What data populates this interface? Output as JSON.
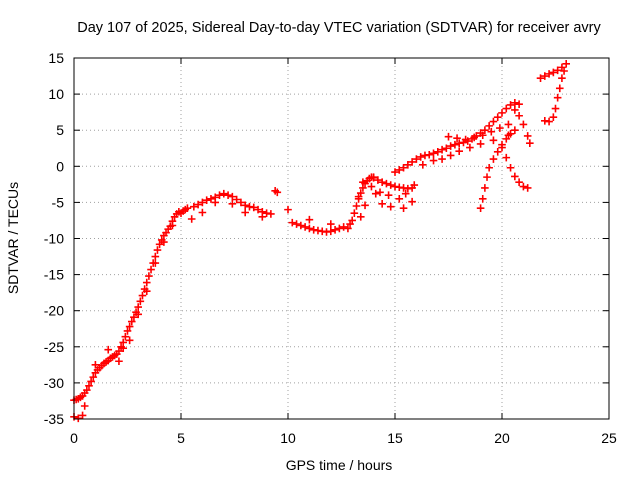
{
  "chart_data": {
    "type": "scatter",
    "title": "Day 107 of 2025, Sidereal Day-to-day VTEC variation (SDTVAR) for receiver avry",
    "xlabel": "GPS time / hours",
    "ylabel": "SDTVAR / TECUs",
    "xlim": [
      0,
      25
    ],
    "ylim": [
      -35,
      15
    ],
    "xticks": [
      0,
      5,
      10,
      15,
      20,
      25
    ],
    "yticks": [
      -35,
      -30,
      -25,
      -20,
      -15,
      -10,
      -5,
      0,
      5,
      10,
      15
    ],
    "grid": true,
    "marker": "+",
    "color": "#ff0000",
    "series": [
      {
        "name": "SDTVAR",
        "points": [
          [
            0.0,
            -32.4
          ],
          [
            0.1,
            -32.3
          ],
          [
            0.2,
            -32.2
          ],
          [
            0.3,
            -32.0
          ],
          [
            0.4,
            -31.8
          ],
          [
            0.5,
            -31.4
          ],
          [
            0.6,
            -31.0
          ],
          [
            0.7,
            -30.4
          ],
          [
            0.8,
            -29.8
          ],
          [
            0.9,
            -29.2
          ],
          [
            1.0,
            -28.6
          ],
          [
            1.1,
            -28.2
          ],
          [
            1.2,
            -27.9
          ],
          [
            1.3,
            -27.6
          ],
          [
            1.4,
            -27.3
          ],
          [
            1.5,
            -27.1
          ],
          [
            1.6,
            -26.9
          ],
          [
            1.7,
            -26.6
          ],
          [
            1.8,
            -26.4
          ],
          [
            1.9,
            -26.2
          ],
          [
            2.0,
            -26.0
          ],
          [
            2.1,
            -25.6
          ],
          [
            2.2,
            -25.0
          ],
          [
            2.3,
            -24.4
          ],
          [
            2.4,
            -23.6
          ],
          [
            2.5,
            -22.8
          ],
          [
            2.6,
            -22.2
          ],
          [
            2.7,
            -21.5
          ],
          [
            2.8,
            -20.9
          ],
          [
            2.9,
            -20.2
          ],
          [
            3.0,
            -19.5
          ],
          [
            3.1,
            -18.7
          ],
          [
            3.2,
            -17.9
          ],
          [
            3.3,
            -17.0
          ],
          [
            3.4,
            -16.1
          ],
          [
            3.5,
            -15.2
          ],
          [
            3.6,
            -14.3
          ],
          [
            3.7,
            -13.4
          ],
          [
            3.8,
            -12.5
          ],
          [
            3.9,
            -11.6
          ],
          [
            4.0,
            -10.8
          ],
          [
            4.1,
            -10.2
          ],
          [
            4.2,
            -9.6
          ],
          [
            4.3,
            -9.2
          ],
          [
            4.4,
            -8.7
          ],
          [
            4.5,
            -8.3
          ],
          [
            4.6,
            -7.6
          ],
          [
            4.7,
            -7.0
          ],
          [
            4.8,
            -6.6
          ],
          [
            4.9,
            -6.3
          ],
          [
            5.0,
            -6.5
          ],
          [
            5.1,
            -6.2
          ],
          [
            5.2,
            -6.0
          ],
          [
            5.3,
            -5.8
          ],
          [
            5.6,
            -5.6
          ],
          [
            5.8,
            -5.3
          ],
          [
            6.0,
            -5.0
          ],
          [
            6.2,
            -4.7
          ],
          [
            6.4,
            -4.5
          ],
          [
            6.6,
            -4.3
          ],
          [
            6.8,
            -4.0
          ],
          [
            7.0,
            -3.8
          ],
          [
            7.2,
            -4.0
          ],
          [
            7.4,
            -4.2
          ],
          [
            7.6,
            -4.6
          ],
          [
            7.8,
            -5.0
          ],
          [
            8.0,
            -5.4
          ],
          [
            8.2,
            -5.6
          ],
          [
            8.4,
            -5.7
          ],
          [
            8.6,
            -6.0
          ],
          [
            8.8,
            -6.3
          ],
          [
            9.0,
            -6.5
          ],
          [
            9.2,
            -6.6
          ],
          [
            9.4,
            -3.4
          ],
          [
            9.5,
            -3.6
          ],
          [
            10.0,
            -6.0
          ],
          [
            10.2,
            -7.8
          ],
          [
            10.4,
            -8.0
          ],
          [
            10.6,
            -8.2
          ],
          [
            10.8,
            -8.4
          ],
          [
            11.0,
            -8.6
          ],
          [
            11.2,
            -8.8
          ],
          [
            11.4,
            -8.9
          ],
          [
            11.6,
            -9.0
          ],
          [
            11.8,
            -9.1
          ],
          [
            12.0,
            -9.0
          ],
          [
            12.2,
            -8.8
          ],
          [
            12.4,
            -8.6
          ],
          [
            12.6,
            -8.4
          ],
          [
            12.8,
            -8.6
          ],
          [
            13.0,
            -7.5
          ],
          [
            13.1,
            -6.5
          ],
          [
            13.2,
            -5.5
          ],
          [
            13.3,
            -4.5
          ],
          [
            13.4,
            -3.7
          ],
          [
            13.5,
            -3.0
          ],
          [
            13.6,
            -2.4
          ],
          [
            13.7,
            -2.0
          ],
          [
            13.8,
            -1.7
          ],
          [
            13.9,
            -1.5
          ],
          [
            14.0,
            -1.6
          ],
          [
            14.2,
            -1.9
          ],
          [
            14.4,
            -2.2
          ],
          [
            14.6,
            -2.4
          ],
          [
            14.8,
            -2.6
          ],
          [
            15.0,
            -2.8
          ],
          [
            15.2,
            -2.9
          ],
          [
            15.4,
            -3.0
          ],
          [
            15.6,
            -3.1
          ],
          [
            15.8,
            -3.0
          ],
          [
            15.0,
            -0.8
          ],
          [
            15.2,
            -0.5
          ],
          [
            15.4,
            -0.2
          ],
          [
            15.6,
            0.2
          ],
          [
            15.8,
            0.6
          ],
          [
            16.0,
            1.0
          ],
          [
            16.2,
            1.3
          ],
          [
            16.4,
            1.5
          ],
          [
            16.6,
            1.6
          ],
          [
            16.8,
            1.8
          ],
          [
            17.0,
            2.0
          ],
          [
            17.2,
            2.3
          ],
          [
            17.4,
            2.5
          ],
          [
            17.6,
            2.8
          ],
          [
            17.8,
            3.0
          ],
          [
            18.0,
            3.2
          ],
          [
            18.2,
            3.3
          ],
          [
            18.4,
            3.5
          ],
          [
            18.6,
            3.8
          ],
          [
            18.8,
            4.2
          ],
          [
            19.0,
            4.6
          ],
          [
            19.2,
            5.0
          ],
          [
            19.4,
            5.6
          ],
          [
            19.6,
            6.2
          ],
          [
            19.8,
            6.8
          ],
          [
            20.0,
            7.4
          ],
          [
            20.2,
            8.0
          ],
          [
            20.4,
            8.5
          ],
          [
            20.6,
            8.8
          ],
          [
            20.8,
            8.6
          ],
          [
            19.0,
            -5.8
          ],
          [
            19.1,
            -4.5
          ],
          [
            19.2,
            -3.0
          ],
          [
            19.3,
            -1.5
          ],
          [
            19.4,
            -0.2
          ],
          [
            19.6,
            1.0
          ],
          [
            19.8,
            2.0
          ],
          [
            20.0,
            3.0
          ],
          [
            20.2,
            3.8
          ],
          [
            20.4,
            4.5
          ],
          [
            20.6,
            5.0
          ],
          [
            20.0,
            2.6
          ],
          [
            20.2,
            1.2
          ],
          [
            20.4,
            -0.2
          ],
          [
            20.6,
            -1.4
          ],
          [
            20.8,
            -2.2
          ],
          [
            21.0,
            -2.8
          ],
          [
            21.2,
            -3.0
          ],
          [
            20.6,
            7.8
          ],
          [
            20.8,
            7.0
          ],
          [
            21.0,
            5.8
          ],
          [
            21.2,
            4.2
          ],
          [
            21.3,
            3.2
          ],
          [
            17.5,
            4.1
          ],
          [
            17.9,
            3.9
          ],
          [
            18.3,
            3.7
          ],
          [
            18.7,
            4.0
          ],
          [
            19.1,
            4.3
          ],
          [
            19.5,
            4.8
          ],
          [
            19.9,
            5.3
          ],
          [
            20.3,
            5.8
          ],
          [
            22.0,
            6.3
          ],
          [
            22.2,
            6.2
          ],
          [
            22.4,
            6.8
          ],
          [
            22.5,
            8.0
          ],
          [
            22.6,
            9.5
          ],
          [
            22.7,
            10.8
          ],
          [
            22.8,
            12.2
          ],
          [
            22.9,
            13.2
          ],
          [
            23.0,
            14.2
          ],
          [
            21.8,
            12.2
          ],
          [
            22.0,
            12.5
          ],
          [
            22.2,
            12.8
          ],
          [
            22.4,
            13.0
          ],
          [
            22.6,
            13.3
          ],
          [
            22.8,
            13.7
          ],
          [
            0.0,
            -34.7
          ],
          [
            0.2,
            -34.9
          ],
          [
            0.4,
            -34.5
          ],
          [
            0.5,
            -33.2
          ],
          [
            1.0,
            -27.5
          ],
          [
            1.6,
            -25.4
          ],
          [
            2.1,
            -27.0
          ],
          [
            2.3,
            -25.2
          ],
          [
            2.6,
            -24.1
          ],
          [
            3.0,
            -20.5
          ],
          [
            3.4,
            -17.3
          ],
          [
            3.8,
            -13.4
          ],
          [
            4.2,
            -10.5
          ],
          [
            4.6,
            -8.2
          ],
          [
            5.5,
            -7.3
          ],
          [
            6.0,
            -6.4
          ],
          [
            6.6,
            -5.0
          ],
          [
            7.4,
            -5.2
          ],
          [
            8.0,
            -6.4
          ],
          [
            8.8,
            -7.0
          ],
          [
            11.0,
            -7.4
          ],
          [
            12.0,
            -8.0
          ],
          [
            12.9,
            -8.0
          ],
          [
            13.4,
            -7.0
          ],
          [
            13.6,
            -5.4
          ],
          [
            13.3,
            -4.2
          ],
          [
            13.5,
            -2.2
          ],
          [
            13.9,
            -2.8
          ],
          [
            14.3,
            -3.6
          ],
          [
            14.7,
            -4.0
          ],
          [
            15.2,
            -4.5
          ],
          [
            15.5,
            -3.8
          ],
          [
            15.9,
            -2.6
          ],
          [
            16.3,
            0.2
          ],
          [
            16.8,
            0.8
          ],
          [
            17.2,
            1.0
          ],
          [
            17.6,
            1.5
          ],
          [
            18.0,
            2.1
          ],
          [
            18.5,
            2.6
          ],
          [
            19.0,
            3.1
          ],
          [
            19.6,
            3.6
          ],
          [
            20.3,
            4.3
          ],
          [
            14.0,
            -1.5
          ],
          [
            14.1,
            -3.8
          ],
          [
            14.4,
            -5.2
          ],
          [
            14.8,
            -5.6
          ],
          [
            15.4,
            -5.8
          ],
          [
            15.8,
            -4.9
          ]
        ]
      }
    ]
  }
}
